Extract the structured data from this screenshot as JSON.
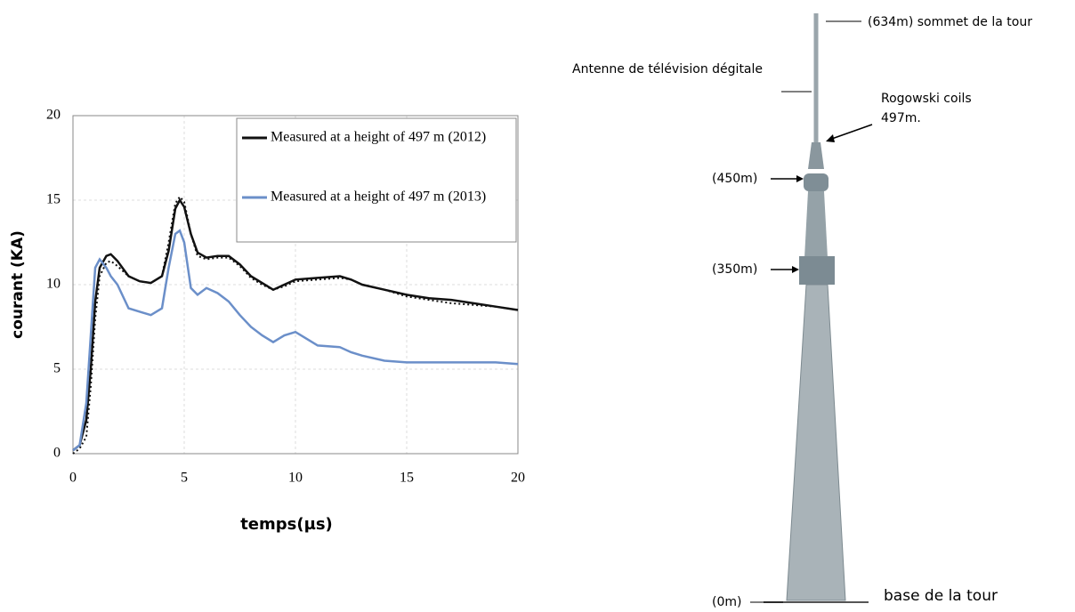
{
  "chart_data": {
    "type": "line",
    "x_label": "temps(µs)",
    "y_label": "courant (KA)",
    "x": [
      0,
      0.3,
      0.6,
      0.8,
      1.0,
      1.2,
      1.5,
      1.7,
      2,
      2.5,
      3,
      3.5,
      4,
      4.3,
      4.6,
      4.8,
      5,
      5.3,
      5.6,
      6,
      6.5,
      7,
      7.5,
      8,
      8.5,
      9,
      9.5,
      10,
      11,
      12,
      12.5,
      13,
      14,
      15,
      16,
      17,
      18,
      19,
      20
    ],
    "series": [
      {
        "name": "Measured at a height of 497 m (2012)",
        "color": "#111111",
        "values": [
          0.2,
          0.5,
          2,
          5,
          9,
          11,
          11.7,
          11.8,
          11.4,
          10.5,
          10.2,
          10.1,
          10.5,
          12,
          14.5,
          15,
          14.6,
          13,
          11.9,
          11.6,
          11.7,
          11.7,
          11.2,
          10.5,
          10.1,
          9.7,
          10,
          10.3,
          10.4,
          10.5,
          10.3,
          10,
          9.7,
          9.4,
          9.2,
          9.1,
          8.9,
          8.7,
          8.5
        ]
      },
      {
        "name": "Measured at a height of 497 m (2013)",
        "color": "#6b8fc9",
        "values": [
          0.2,
          0.5,
          3,
          7,
          11,
          11.5,
          11,
          10.5,
          10,
          8.6,
          8.4,
          8.2,
          8.6,
          11,
          13,
          13.2,
          12.5,
          9.8,
          9.4,
          9.8,
          9.5,
          9,
          8.2,
          7.5,
          7.0,
          6.6,
          7,
          7.2,
          6.4,
          6.3,
          6.0,
          5.8,
          5.5,
          5.4,
          5.4,
          5.4,
          5.4,
          5.4,
          5.3
        ]
      },
      {
        "color": "#111111",
        "dashed": true,
        "values": [
          0,
          0.3,
          1,
          4,
          8,
          10.5,
          11.3,
          11.4,
          11.1,
          10.5,
          10.2,
          10.1,
          10.5,
          12.5,
          14.8,
          15.2,
          14.9,
          13,
          11.7,
          11.5,
          11.6,
          11.6,
          11.1,
          10.4,
          10,
          9.7,
          9.9,
          10.2,
          10.3,
          10.4,
          10.3,
          10,
          9.7,
          9.3,
          9.1,
          8.9,
          8.8,
          8.7,
          8.5
        ]
      }
    ],
    "xlim": [
      0,
      20
    ],
    "xticks": [
      0,
      5,
      10,
      15,
      20
    ],
    "ylim": [
      0,
      20
    ],
    "yticks": [
      0,
      5,
      10,
      15,
      20
    ],
    "grid": true,
    "legend": "upper right"
  },
  "diagram": {
    "labels": [
      "(634m) sommet de la tour",
      "Antenne de télévision dégitale",
      "Rogowski coils",
      "497m.",
      "(450m)",
      "(350m)",
      "(0m)",
      "base de la tour"
    ]
  }
}
